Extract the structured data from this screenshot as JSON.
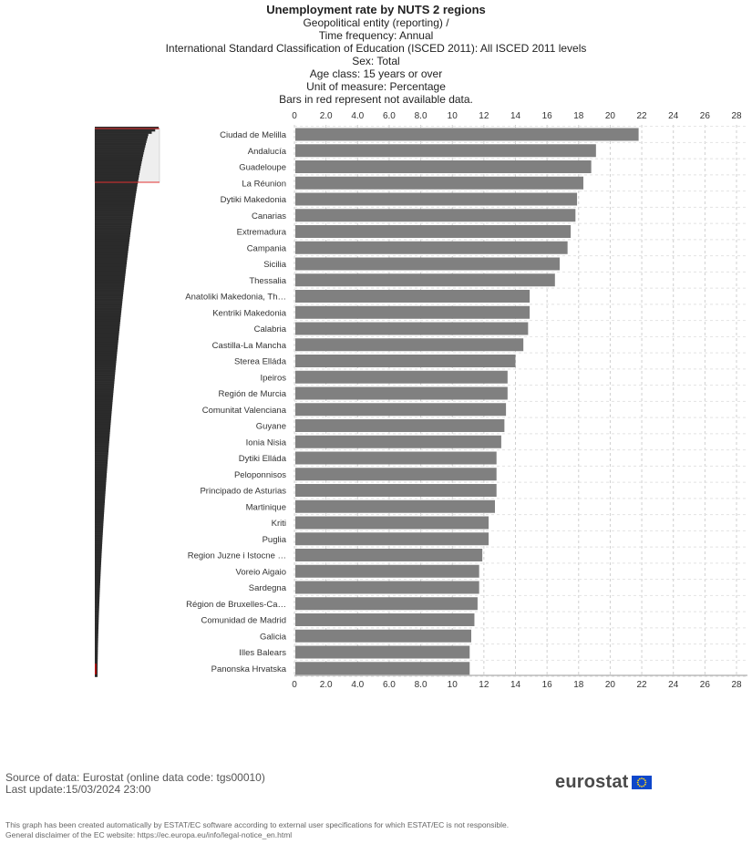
{
  "header": {
    "title": "Unemployment rate by NUTS 2 regions",
    "subtitles": [
      "Geopolitical entity (reporting) /",
      "Time frequency: Annual",
      "International Standard Classification of Education (ISCED 2011): All ISCED 2011 levels",
      "Sex: Total",
      "Age class: 15 years or over",
      "Unit of measure: Percentage",
      "Bars in red represent not available data."
    ]
  },
  "chart_data": {
    "type": "bar",
    "orientation": "horizontal",
    "categories": [
      "Ciudad de Melilla",
      "Andalucía",
      "Guadeloupe",
      "La Réunion",
      "Dytiki Makedonia",
      "Canarias",
      "Extremadura",
      "Campania",
      "Sicilia",
      "Thessalia",
      "Anatoliki Makedonia, Th…",
      "Kentriki Makedonia",
      "Calabria",
      "Castilla-La Mancha",
      "Sterea Elláda",
      "Ipeiros",
      "Región de Murcia",
      "Comunitat Valenciana",
      "Guyane",
      "Ionia Nisia",
      "Dytiki Elláda",
      "Peloponnisos",
      "Principado de Asturias",
      "Martinique",
      "Kriti",
      "Puglia",
      "Region Juzne i Istocne …",
      "Voreio Aigaio",
      "Sardegna",
      "Région de Bruxelles-Ca…",
      "Comunidad de Madrid",
      "Galicia",
      "Illes Balears",
      "Panonska Hrvatska"
    ],
    "values": [
      21.8,
      19.1,
      18.8,
      18.3,
      17.9,
      17.8,
      17.5,
      17.3,
      16.8,
      16.5,
      14.9,
      14.9,
      14.8,
      14.5,
      14.0,
      13.5,
      13.5,
      13.4,
      13.3,
      13.1,
      12.8,
      12.8,
      12.8,
      12.7,
      12.3,
      12.3,
      11.9,
      11.7,
      11.7,
      11.6,
      11.4,
      11.2,
      11.1,
      11.1
    ],
    "xlim": [
      0,
      28
    ],
    "x_ticks": [
      "0",
      "2.0",
      "4.0",
      "6.0",
      "8.0",
      "10",
      "12",
      "14",
      "16",
      "18",
      "20",
      "22",
      "24",
      "26",
      "28"
    ],
    "x_tick_values": [
      0,
      2,
      4,
      6,
      8,
      10,
      12,
      14,
      16,
      18,
      20,
      22,
      24,
      26,
      28
    ],
    "grid": true,
    "bar_color": "#808080",
    "overview_color": "#2b2b2b",
    "na_color": "#e03030"
  },
  "footer": {
    "source": "Source of data: Eurostat (online data code: tgs00010)",
    "last_update": "Last update:15/03/2024 23:00",
    "disclaimer_1": "This graph has been created automatically by ESTAT/EC software according to external user specifications for which ESTAT/EC is not responsible.",
    "disclaimer_2": "General disclaimer of the EC website: https://ec.europa.eu/info/legal-notice_en.html",
    "logo_text": "eurostat"
  }
}
